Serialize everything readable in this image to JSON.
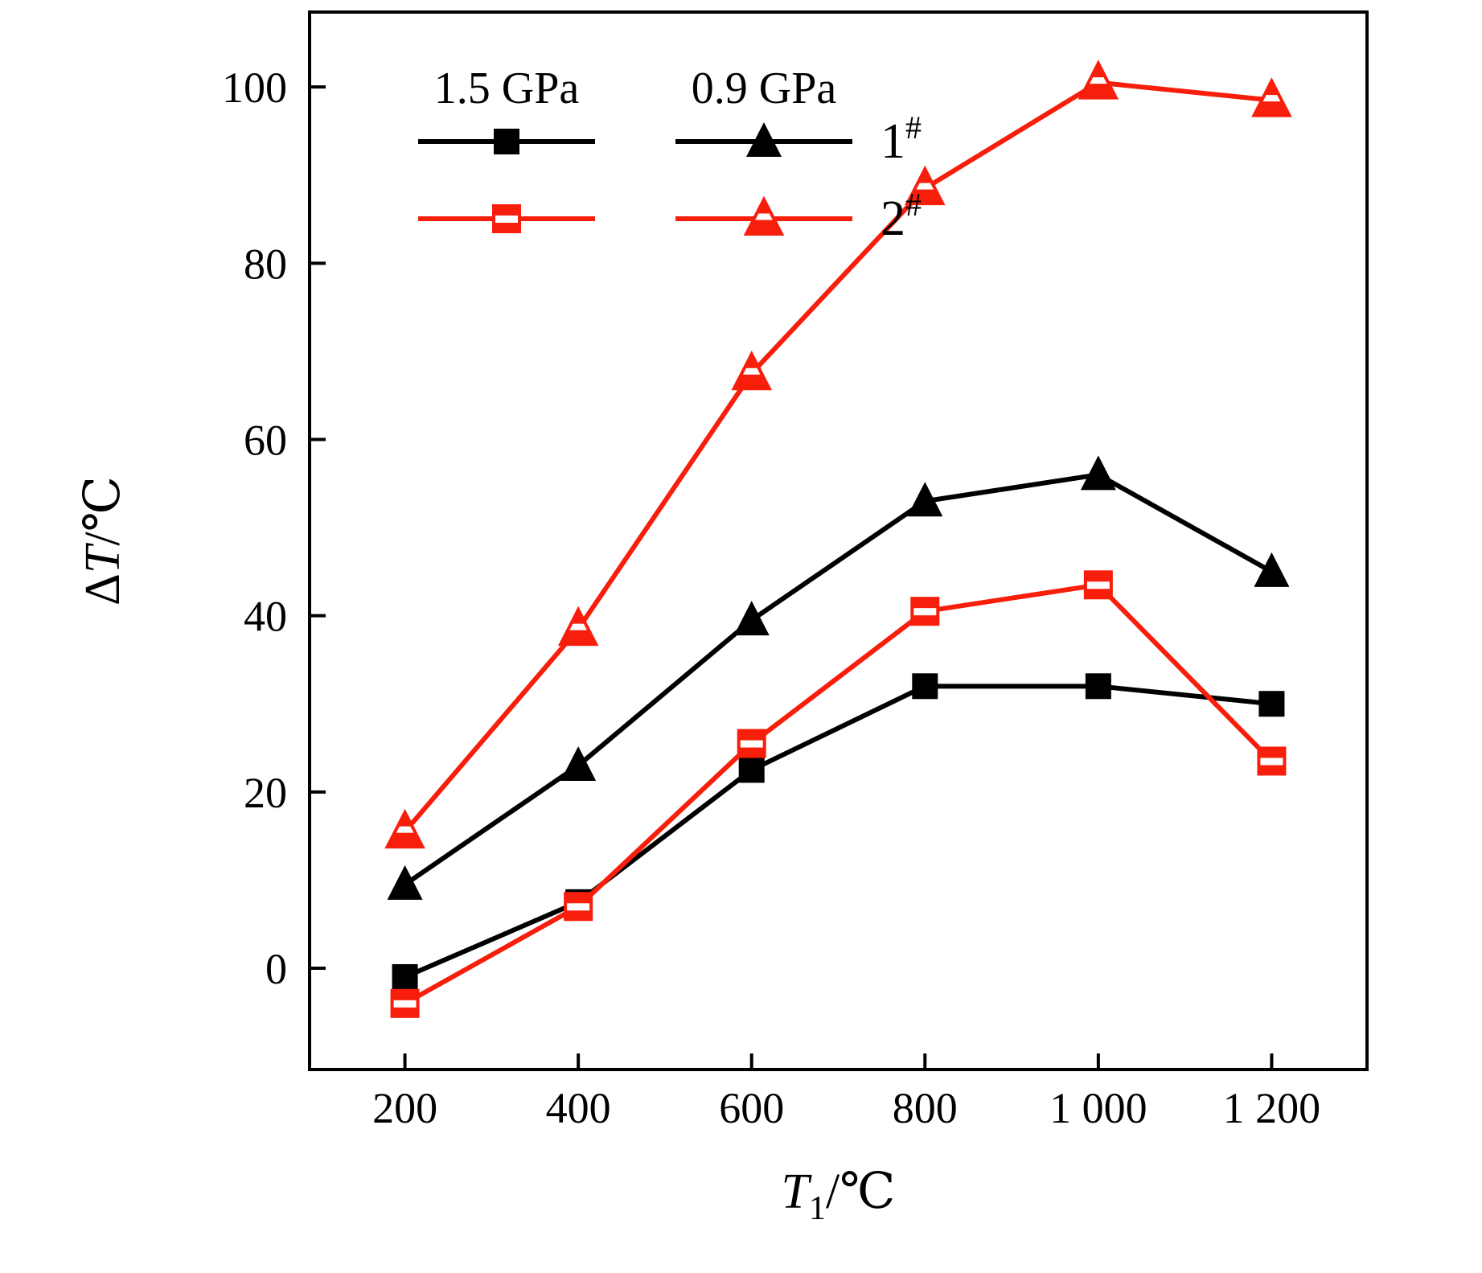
{
  "figure": {
    "background": "#ffffff"
  },
  "colors": {
    "black": "#000000",
    "red": "#f81e0c"
  },
  "axes": {
    "x": {
      "title_italic": "T",
      "title_sub": "1",
      "title_rest": "/℃",
      "tick_labels": [
        "200",
        "400",
        "600",
        "800",
        "1 000",
        "1 200"
      ],
      "tick_values": [
        200,
        400,
        600,
        800,
        1000,
        1200
      ]
    },
    "y": {
      "title_prefix": "Δ",
      "title_italic": "T",
      "title_rest": "/℃",
      "tick_labels": [
        "0",
        "20",
        "40",
        "60",
        "80",
        "100"
      ],
      "tick_values": [
        0,
        20,
        40,
        60,
        80,
        100
      ]
    }
  },
  "legend": {
    "col_headers": [
      "1.5 GPa",
      "0.9 GPa"
    ],
    "rows": [
      {
        "label": "1",
        "label_sup": "#",
        "color": "#000000",
        "markers": [
          "square-filled",
          "triangle-filled"
        ]
      },
      {
        "label": "2",
        "label_sup": "#",
        "color": "#f81e0c",
        "markers": [
          "square-half",
          "triangle-half"
        ]
      }
    ]
  },
  "chart_data": {
    "type": "line",
    "x": [
      200,
      400,
      600,
      800,
      1000,
      1200
    ],
    "series": [
      {
        "name": "1# at 1.5 GPa",
        "sample": "1#",
        "pressure": "1.5 GPa",
        "color": "#000000",
        "marker": "square-filled",
        "values": [
          -1,
          7.5,
          22.5,
          32,
          32,
          30
        ]
      },
      {
        "name": "1# at 0.9 GPa",
        "sample": "1#",
        "pressure": "0.9 GPa",
        "color": "#000000",
        "marker": "triangle-filled",
        "values": [
          9.5,
          23,
          39.5,
          53,
          56,
          45
        ]
      },
      {
        "name": "2# at 1.5 GPa",
        "sample": "2#",
        "pressure": "1.5 GPa",
        "color": "#f81e0c",
        "marker": "square-half",
        "values": [
          -4,
          7,
          25.5,
          40.5,
          43.5,
          23.5
        ]
      },
      {
        "name": "2# at 0.9 GPa",
        "sample": "2#",
        "pressure": "0.9 GPa",
        "color": "#f81e0c",
        "marker": "triangle-half",
        "values": [
          15.5,
          38.5,
          67.5,
          88.5,
          100.5,
          98.5
        ]
      }
    ],
    "xlabel": "T1/℃",
    "ylabel": "ΔT/℃",
    "xlim": [
      90,
      1310
    ],
    "ylim": [
      -11.5,
      108.5
    ],
    "grid": false,
    "legend_position": "top-left-inside"
  }
}
